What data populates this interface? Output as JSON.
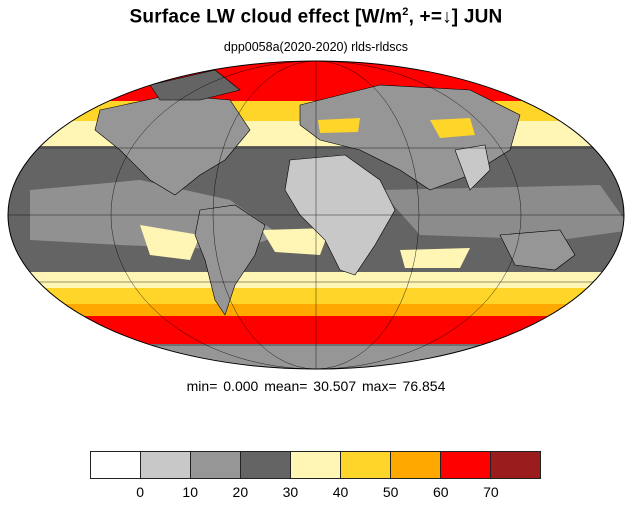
{
  "title": {
    "main": "Surface LW cloud effect [W/m",
    "sup": "2",
    "rest": ", +=↓]  JUN"
  },
  "subtitle": "dpp0058a(2020-2020)  rlds-rldscs",
  "stats": {
    "min_label": "min=",
    "min": "0.000",
    "mean_label": "mean=",
    "mean": "30.507",
    "max_label": "max=",
    "max": "76.854"
  },
  "colorbar": {
    "colors": [
      "#ffffff",
      "#c8c8c8",
      "#969696",
      "#646464",
      "#fff5b4",
      "#ffd52a",
      "#ffa800",
      "#ff0000",
      "#9b1c1c"
    ],
    "tick_labels": [
      "0",
      "10",
      "20",
      "30",
      "40",
      "50",
      "60",
      "70"
    ]
  },
  "map": {
    "projection": "mollweide",
    "ocean_color_tropics": "#646464",
    "land_color": "#969696",
    "high_latitude_colors": [
      "#fff5b4",
      "#ffd52a",
      "#ffa800",
      "#ff0000"
    ],
    "coastline_color": "#000000"
  }
}
